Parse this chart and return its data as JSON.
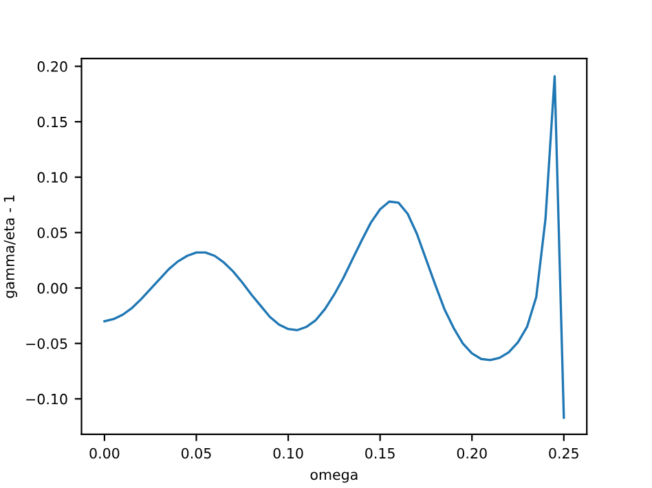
{
  "chart_data": {
    "type": "line",
    "xlabel": "omega",
    "ylabel": "gamma/eta - 1",
    "x": [
      0,
      0.005,
      0.01,
      0.015,
      0.02,
      0.025,
      0.03,
      0.035,
      0.04,
      0.045,
      0.05,
      0.055,
      0.06,
      0.065,
      0.07,
      0.075,
      0.08,
      0.085,
      0.09,
      0.095,
      0.1,
      0.105,
      0.11,
      0.115,
      0.12,
      0.125,
      0.13,
      0.135,
      0.14,
      0.145,
      0.15,
      0.155,
      0.16,
      0.165,
      0.17,
      0.175,
      0.18,
      0.185,
      0.19,
      0.195,
      0.2,
      0.205,
      0.21,
      0.215,
      0.22,
      0.225,
      0.23,
      0.235,
      0.24,
      0.245,
      0.25
    ],
    "series": [
      {
        "color": "#1f77b4",
        "values": [
          -0.03,
          -0.028,
          -0.024,
          -0.018,
          -0.01,
          -0.001,
          0.008,
          0.017,
          0.024,
          0.029,
          0.032,
          0.032,
          0.029,
          0.023,
          0.015,
          0.005,
          -0.006,
          -0.016,
          -0.026,
          -0.033,
          -0.037,
          -0.038,
          -0.035,
          -0.029,
          -0.019,
          -0.006,
          0.009,
          0.026,
          0.043,
          0.059,
          0.071,
          0.078,
          0.077,
          0.067,
          0.049,
          0.026,
          0.003,
          -0.019,
          -0.036,
          -0.05,
          -0.059,
          -0.064,
          -0.065,
          -0.063,
          -0.058,
          -0.049,
          -0.035,
          -0.008,
          0.062,
          0.191,
          -0.117
        ]
      }
    ],
    "xlim": [
      -0.0125,
      0.2625
    ],
    "ylim": [
      -0.132,
      0.207
    ],
    "xticks": [
      {
        "value": 0,
        "label": "0.00"
      },
      0.05,
      {
        "value": 0.1,
        "label": "0.10"
      },
      0.15,
      {
        "value": 0.2,
        "label": "0.20"
      },
      0.25
    ],
    "yticks": [
      {
        "value": -0.1,
        "label": "−0.10"
      },
      {
        "value": -0.05,
        "label": "−0.05"
      },
      {
        "value": 0,
        "label": "0.00"
      },
      0.05,
      {
        "value": 0.1,
        "label": "0.10"
      },
      0.15,
      {
        "value": 0.2,
        "label": "0.20"
      }
    ],
    "grid": false,
    "marker": "none",
    "line_style": "solid"
  }
}
